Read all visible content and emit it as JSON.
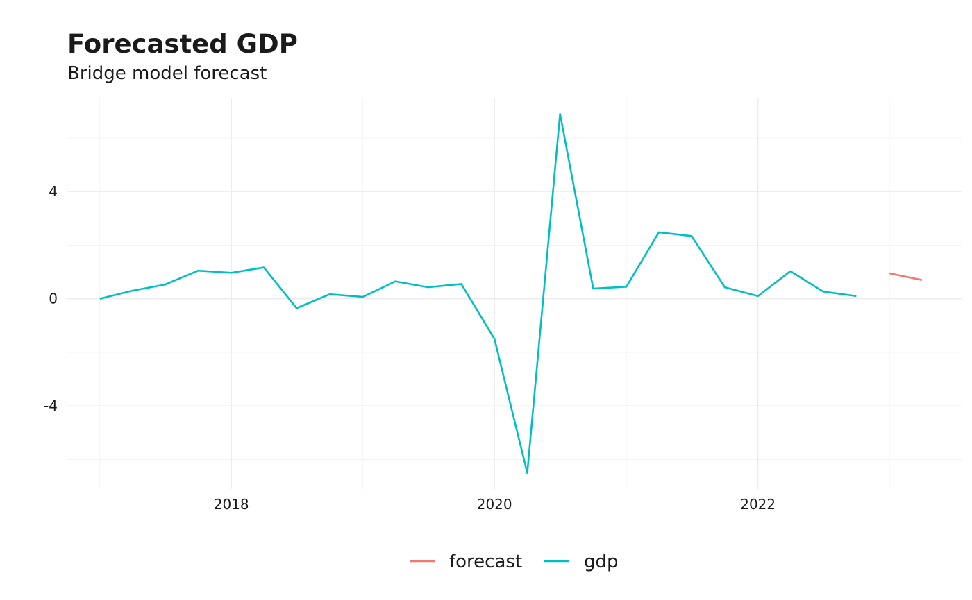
{
  "chart_data": {
    "type": "line",
    "title": "Forecasted GDP",
    "subtitle": "Bridge model forecast",
    "xlabel": "",
    "ylabel": "",
    "x_type": "date",
    "xlim": [
      "2016-10-03",
      "2023-07-20"
    ],
    "ylim": [
      -7.1,
      7.5
    ],
    "x_ticks": [
      {
        "value": "2018-01-01",
        "label": "2018"
      },
      {
        "value": "2020-01-01",
        "label": "2020"
      },
      {
        "value": "2022-01-01",
        "label": "2022"
      }
    ],
    "x_minor_ticks": [
      "2017-01-01",
      "2019-01-01",
      "2021-01-01",
      "2023-01-01"
    ],
    "y_ticks": [
      {
        "value": -4,
        "label": "-4"
      },
      {
        "value": 0,
        "label": "0"
      },
      {
        "value": 4,
        "label": "4"
      }
    ],
    "y_minor_ticks": [
      -6,
      -2,
      2,
      6
    ],
    "grid": true,
    "legend_position": "bottom",
    "series": [
      {
        "name": "forecast",
        "color": "#F8766D",
        "points": [
          {
            "x": "2023-01-01",
            "y": 0.95
          },
          {
            "x": "2023-04-01",
            "y": 0.7
          }
        ]
      },
      {
        "name": "gdp",
        "color": "#00BFC4",
        "points": [
          {
            "x": "2017-01-01",
            "y": 0.0
          },
          {
            "x": "2017-04-01",
            "y": 0.3
          },
          {
            "x": "2017-07-01",
            "y": 0.53
          },
          {
            "x": "2017-10-01",
            "y": 1.05
          },
          {
            "x": "2018-01-01",
            "y": 0.97
          },
          {
            "x": "2018-04-01",
            "y": 1.17
          },
          {
            "x": "2018-07-01",
            "y": -0.35
          },
          {
            "x": "2018-10-01",
            "y": 0.17
          },
          {
            "x": "2019-01-01",
            "y": 0.07
          },
          {
            "x": "2019-04-01",
            "y": 0.65
          },
          {
            "x": "2019-07-01",
            "y": 0.43
          },
          {
            "x": "2019-10-01",
            "y": 0.55
          },
          {
            "x": "2020-01-01",
            "y": -1.5
          },
          {
            "x": "2020-04-01",
            "y": -6.5
          },
          {
            "x": "2020-07-01",
            "y": 6.9
          },
          {
            "x": "2020-10-01",
            "y": 0.38
          },
          {
            "x": "2021-01-01",
            "y": 0.45
          },
          {
            "x": "2021-04-01",
            "y": 2.48
          },
          {
            "x": "2021-07-01",
            "y": 2.34
          },
          {
            "x": "2021-10-01",
            "y": 0.43
          },
          {
            "x": "2022-01-01",
            "y": 0.1
          },
          {
            "x": "2022-04-01",
            "y": 1.03
          },
          {
            "x": "2022-07-01",
            "y": 0.27
          },
          {
            "x": "2022-10-01",
            "y": 0.1
          }
        ]
      }
    ]
  }
}
